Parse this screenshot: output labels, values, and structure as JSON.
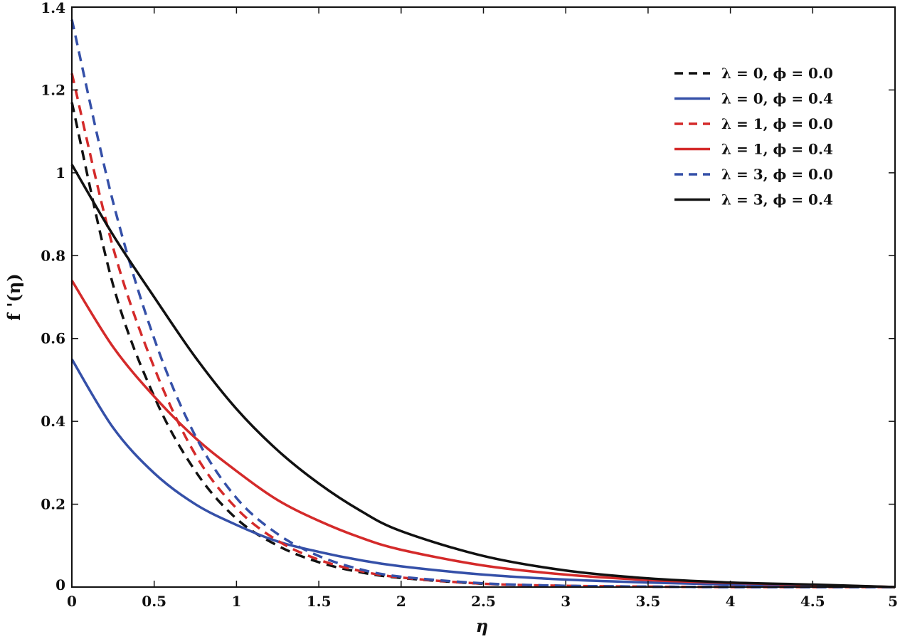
{
  "chart_data": {
    "type": "line",
    "title": "",
    "xlabel": "η",
    "ylabel": "f '(η)",
    "xlim": [
      0,
      5
    ],
    "ylim": [
      0,
      1.4
    ],
    "xticks": [
      "0",
      "0.5",
      "1",
      "1.5",
      "2",
      "2.5",
      "3",
      "3.5",
      "4",
      "4.5",
      "5"
    ],
    "yticks": [
      "0",
      "0.2",
      "0.4",
      "0.6",
      "0.8",
      "1",
      "1.2",
      "1.4"
    ],
    "grid": false,
    "legend_position": "top-right",
    "x": [
      0,
      0.25,
      0.5,
      0.75,
      1,
      1.25,
      1.5,
      1.75,
      2,
      2.5,
      3,
      3.5,
      4,
      4.5,
      5
    ],
    "series": [
      {
        "name": "λ = 0, ϕ = 0.0",
        "color": "#111111",
        "dash": true,
        "values": [
          1.17,
          0.73,
          0.46,
          0.28,
          0.165,
          0.1,
          0.06,
          0.036,
          0.022,
          0.008,
          0.003,
          0.001,
          0.0,
          0.0,
          0.0
        ]
      },
      {
        "name": "λ = 0, ϕ = 0.4",
        "color": "#3550a8",
        "dash": false,
        "values": [
          0.55,
          0.385,
          0.275,
          0.2,
          0.15,
          0.11,
          0.085,
          0.065,
          0.05,
          0.03,
          0.018,
          0.011,
          0.006,
          0.003,
          0.0
        ]
      },
      {
        "name": "λ = 1, ϕ = 0.0",
        "color": "#d42a2a",
        "dash": true,
        "values": [
          1.24,
          0.82,
          0.53,
          0.32,
          0.19,
          0.112,
          0.066,
          0.039,
          0.023,
          0.008,
          0.003,
          0.001,
          0.0,
          0.0,
          0.0
        ]
      },
      {
        "name": "λ = 1, ϕ = 0.4",
        "color": "#d42a2a",
        "dash": false,
        "values": [
          0.74,
          0.58,
          0.46,
          0.36,
          0.28,
          0.21,
          0.16,
          0.12,
          0.09,
          0.052,
          0.03,
          0.017,
          0.01,
          0.005,
          0.0
        ]
      },
      {
        "name": "λ = 3, ϕ = 0.0",
        "color": "#3550a8",
        "dash": true,
        "values": [
          1.37,
          0.93,
          0.6,
          0.365,
          0.215,
          0.128,
          0.075,
          0.043,
          0.025,
          0.009,
          0.003,
          0.001,
          0.0,
          0.0,
          0.0
        ]
      },
      {
        "name": "λ = 3, ϕ = 0.4",
        "color": "#111111",
        "dash": false,
        "values": [
          1.02,
          0.85,
          0.7,
          0.555,
          0.43,
          0.33,
          0.25,
          0.185,
          0.135,
          0.075,
          0.04,
          0.021,
          0.011,
          0.006,
          0.0
        ]
      }
    ]
  }
}
